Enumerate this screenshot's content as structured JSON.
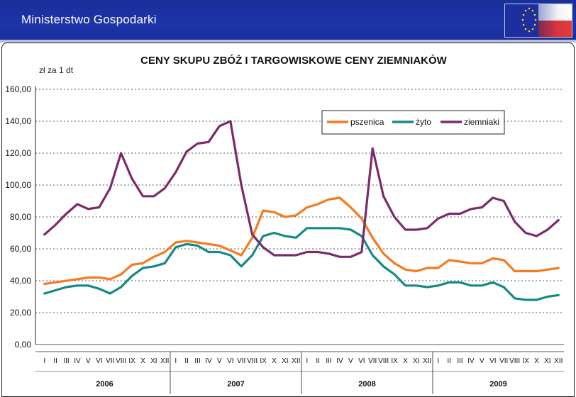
{
  "header": {
    "title": "Ministerstwo Gospodarki",
    "logo_icon": "eu-poland-flag-icon"
  },
  "chart_data": {
    "type": "line",
    "title": "CENY SKUPU ZBÓŻ I TARGOWISKOWE CENY ZIEMNIAKÓW",
    "ylabel": "zł za 1 dt",
    "ylim": [
      0,
      160
    ],
    "yticks": [
      "0,00",
      "20,00",
      "40,00",
      "60,00",
      "80,00",
      "100,00",
      "120,00",
      "140,00",
      "160,00"
    ],
    "grid": true,
    "legend_position": "top-right",
    "years": [
      "2006",
      "2007",
      "2008",
      "2009"
    ],
    "months": [
      "I",
      "II",
      "III",
      "IV",
      "V",
      "VI",
      "VII",
      "VIII",
      "IX",
      "X",
      "XI",
      "XII"
    ],
    "series": [
      {
        "name": "pszenica",
        "color": "#f47b20",
        "values": [
          38,
          39,
          40,
          41,
          42,
          42,
          41,
          44,
          50,
          51,
          55,
          58,
          64,
          65,
          64,
          63,
          62,
          59,
          56,
          67,
          84,
          83,
          80,
          81,
          86,
          88,
          91,
          92,
          86,
          79,
          67,
          57,
          51,
          47,
          46,
          48,
          48,
          53,
          52,
          51,
          51,
          54,
          53,
          46,
          46,
          46,
          47,
          48
        ]
      },
      {
        "name": "żyto",
        "color": "#138a84",
        "values": [
          32,
          34,
          36,
          37,
          37,
          35,
          32,
          36,
          43,
          48,
          49,
          51,
          61,
          63,
          62,
          58,
          58,
          56,
          49,
          56,
          68,
          70,
          68,
          67,
          73,
          73,
          73,
          73,
          72,
          68,
          56,
          49,
          44,
          37,
          37,
          36,
          37,
          39,
          39,
          37,
          37,
          39,
          36,
          29,
          28,
          28,
          30,
          31
        ]
      },
      {
        "name": "ziemniaki",
        "color": "#7b2a6a",
        "values": [
          69,
          75,
          82,
          88,
          85,
          86,
          98,
          120,
          104,
          93,
          93,
          98,
          108,
          121,
          126,
          127,
          137,
          140,
          100,
          69,
          61,
          56,
          56,
          56,
          58,
          58,
          57,
          55,
          55,
          58,
          123,
          93,
          80,
          72,
          72,
          73,
          79,
          82,
          82,
          85,
          86,
          92,
          90,
          77,
          70,
          68,
          72,
          78
        ]
      }
    ]
  }
}
